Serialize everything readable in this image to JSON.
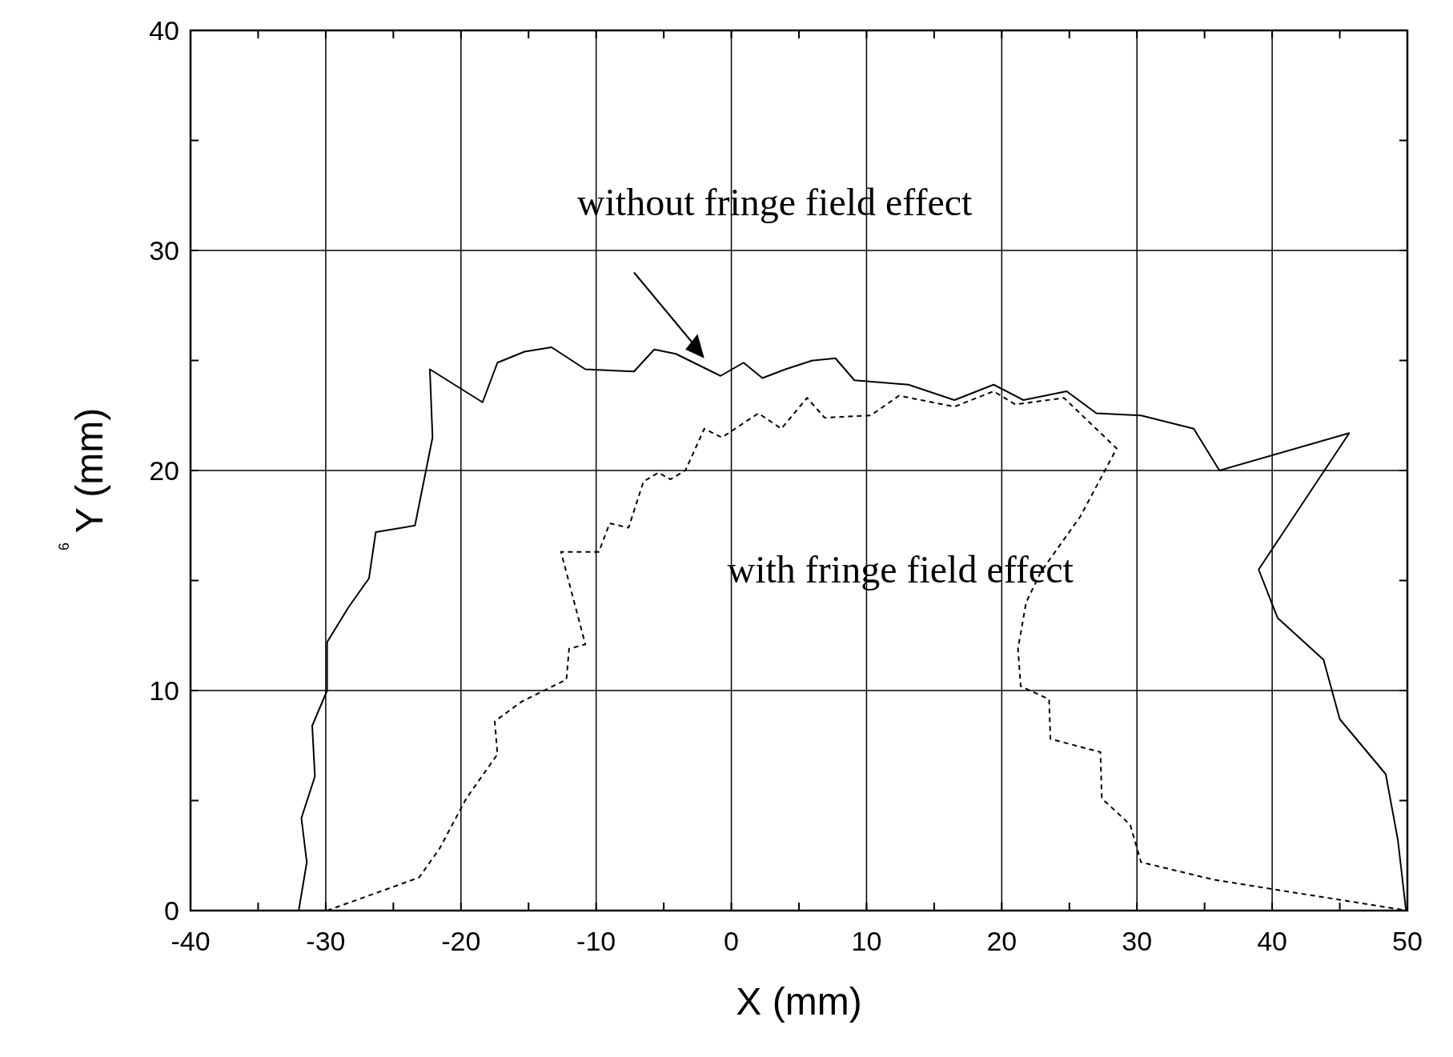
{
  "chart_data": {
    "type": "line",
    "xlabel": "X (mm)",
    "ylabel": "Y (mm)",
    "xlim": [
      -40,
      50
    ],
    "ylim": [
      0,
      40
    ],
    "xticks": [
      -40,
      {
        "value": -35,
        "label": null
      },
      -30,
      {
        "value": -25,
        "label": null
      },
      -20,
      {
        "value": -15,
        "label": null
      },
      -10,
      {
        "value": -5,
        "label": null
      },
      0,
      {
        "value": 5,
        "label": null
      },
      10,
      {
        "value": 15,
        "label": null
      },
      20,
      {
        "value": 25,
        "label": null
      },
      30,
      {
        "value": 35,
        "label": null
      },
      40,
      {
        "value": 45,
        "label": null
      },
      50
    ],
    "yticks": [
      0,
      {
        "value": 5,
        "label": null
      },
      10,
      {
        "value": 15,
        "label": null
      },
      20,
      {
        "value": 25,
        "label": null
      },
      30,
      {
        "value": 35,
        "label": null
      },
      40
    ],
    "grid": true,
    "marker": "none",
    "annotations": [
      "without fringe field effect",
      "with fringe field effect",
      "6"
    ],
    "series": [
      {
        "color": "#000000",
        "line_style": "solid",
        "x": [
          -32.0,
          -31.4,
          -31.8,
          -30.8,
          -31.0,
          -29.9,
          -29.9,
          -28.3,
          -26.8,
          -26.3,
          -23.4,
          -22.1,
          -22.3,
          -18.4,
          -17.3,
          -15.3,
          -13.3,
          -10.8,
          -7.2,
          -5.7,
          -4.1,
          -0.8,
          0.9,
          2.3,
          4.0,
          6.0,
          7.7,
          9.1,
          11.1,
          13.1,
          16.5,
          19.4,
          21.6,
          24.8,
          27.0,
          30.3,
          34.2,
          36.1,
          45.7,
          39.0,
          40.4,
          43.8,
          45.0,
          48.4,
          49.3,
          49.9
        ],
        "values": [
          0,
          2.2,
          4.2,
          6.1,
          8.4,
          10.0,
          12.2,
          13.8,
          15.1,
          17.2,
          17.5,
          21.5,
          24.6,
          23.1,
          24.9,
          25.4,
          25.6,
          24.6,
          24.5,
          25.5,
          25.3,
          24.3,
          24.9,
          24.2,
          24.6,
          25.0,
          25.1,
          24.1,
          24.0,
          23.9,
          23.2,
          23.9,
          23.2,
          23.6,
          22.6,
          22.5,
          21.9,
          20.0,
          21.7,
          15.5,
          13.3,
          11.4,
          8.7,
          6.2,
          3.2,
          0
        ]
      },
      {
        "color": "#000000",
        "line_style": "dashed",
        "x": [
          -29.9,
          -23.1,
          -21.6,
          -19.6,
          -17.3,
          -17.5,
          -15.5,
          -12.2,
          -12.0,
          -10.8,
          -12.6,
          -9.8,
          -9.0,
          -7.6,
          -6.5,
          -5.4,
          -4.5,
          -3.4,
          -2.0,
          -0.7,
          2.0,
          3.7,
          5.6,
          6.9,
          10.3,
          12.4,
          16.5,
          19.4,
          21.0,
          24.6,
          28.5,
          25.8,
          22.9,
          21.8,
          21.2,
          21.4,
          23.5,
          23.6,
          27.3,
          27.4,
          29.5,
          30.3,
          35.7,
          50.0
        ],
        "values": [
          0,
          1.5,
          2.8,
          5.1,
          7.1,
          8.6,
          9.5,
          10.5,
          11.9,
          12.1,
          16.3,
          16.3,
          17.6,
          17.4,
          19.5,
          19.9,
          19.6,
          20.0,
          21.9,
          21.5,
          22.6,
          21.9,
          23.3,
          22.4,
          22.5,
          23.4,
          22.9,
          23.6,
          23.0,
          23.3,
          21.0,
          17.9,
          15.4,
          14.0,
          11.9,
          10.2,
          9.6,
          7.8,
          7.2,
          5.1,
          3.9,
          2.2,
          1.4,
          0
        ]
      }
    ]
  }
}
